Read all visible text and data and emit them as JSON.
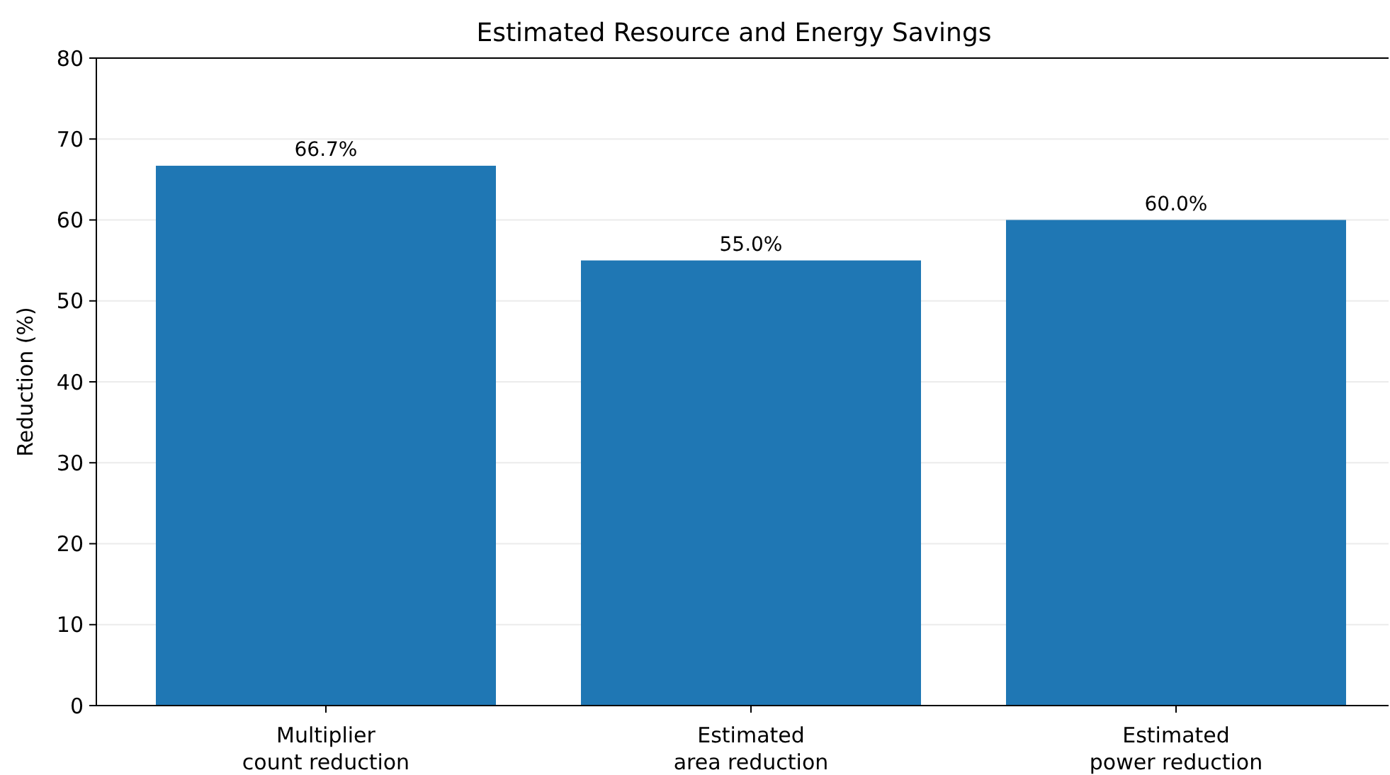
{
  "chart_data": {
    "type": "bar",
    "title": "Estimated Resource and Energy Savings",
    "ylabel": "Reduction (%)",
    "categories": [
      "Multiplier\ncount reduction",
      "Estimated\narea reduction",
      "Estimated\npower reduction"
    ],
    "values": [
      66.7,
      55.0,
      60.0
    ],
    "value_labels": [
      "66.7%",
      "55.0%",
      "60.0%"
    ],
    "color": "#1f77b4",
    "ylim": [
      0,
      80
    ],
    "yticks": [
      0,
      10,
      20,
      30,
      40,
      50,
      60,
      70,
      80
    ],
    "grid": "y"
  }
}
